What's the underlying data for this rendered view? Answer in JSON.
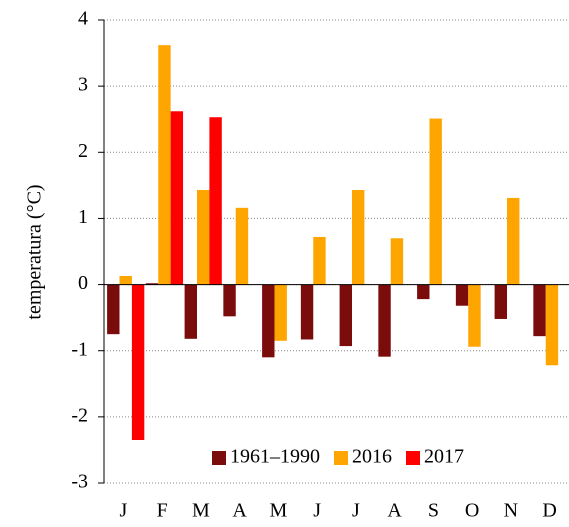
{
  "chart_data": {
    "type": "bar",
    "y_label": "temperatura (°C)",
    "categories": [
      "J",
      "F",
      "M",
      "A",
      "M",
      "J",
      "J",
      "A",
      "S",
      "O",
      "N",
      "D"
    ],
    "series": [
      {
        "name": "1961–1990",
        "color": "#7b0c0c",
        "values": [
          -0.75,
          0.02,
          -0.82,
          -0.48,
          -1.1,
          -0.83,
          -0.93,
          -1.09,
          -0.22,
          -0.32,
          -0.52,
          -0.78
        ]
      },
      {
        "name": "2016",
        "color": "#ffa500",
        "values": [
          0.13,
          3.62,
          1.43,
          1.16,
          -0.85,
          0.72,
          1.43,
          0.7,
          2.51,
          -0.94,
          1.31,
          -1.22
        ]
      },
      {
        "name": "2017",
        "color": "#ff0000",
        "values": [
          -2.35,
          2.62,
          2.53,
          null,
          null,
          null,
          null,
          null,
          null,
          null,
          null,
          null
        ]
      }
    ],
    "ylim": [
      -3,
      4
    ],
    "yticks": [
      -3,
      -2,
      -1,
      0,
      1,
      2,
      3,
      4
    ],
    "grid": true,
    "legend": "lower right"
  }
}
